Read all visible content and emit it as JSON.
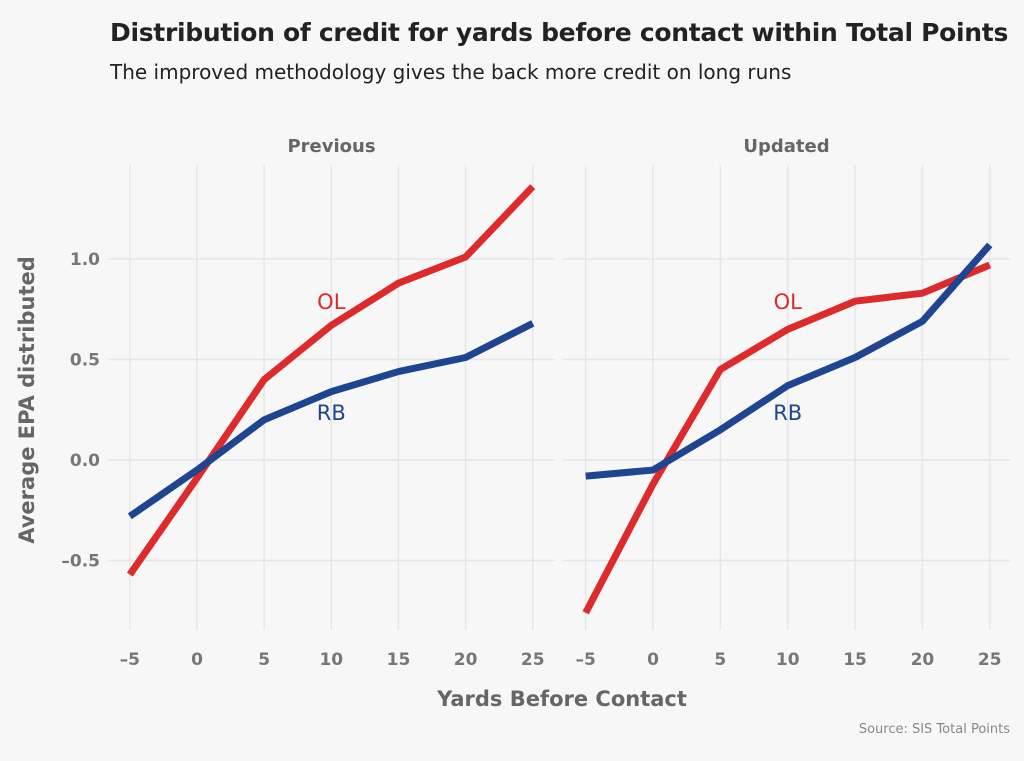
{
  "title": "Distribution of credit for yards before contact within Total Points",
  "subtitle": "The improved methodology gives the back more credit on long runs",
  "source": "Source: SIS Total Points",
  "colors": {
    "OL": "#dd2a2a",
    "RB": "#1f4591",
    "grid": "#e6e6e6",
    "background": "#f7f7f7"
  },
  "chart_data": {
    "type": "line",
    "xlabel": "Yards Before Contact",
    "ylabel": "Average EPA distributed",
    "x": [
      -5,
      0,
      5,
      10,
      15,
      20,
      25
    ],
    "xticks": [
      "-5",
      "0",
      "5",
      "10",
      "15",
      "20",
      "25"
    ],
    "yticks": [
      "-0.5",
      "0.0",
      "0.5",
      "1.0"
    ],
    "xlim": [
      -5,
      25
    ],
    "ylim": [
      -0.85,
      1.5
    ],
    "grid": true,
    "legend": "direct labels",
    "panels": [
      {
        "title": "Previous",
        "series": [
          {
            "name": "OL",
            "values": [
              -0.57,
              -0.09,
              0.4,
              0.67,
              0.88,
              1.01,
              1.36
            ]
          },
          {
            "name": "RB",
            "values": [
              -0.28,
              -0.05,
              0.2,
              0.34,
              0.44,
              0.51,
              0.68
            ]
          }
        ]
      },
      {
        "title": "Updated",
        "series": [
          {
            "name": "OL",
            "values": [
              -0.76,
              -0.12,
              0.45,
              0.65,
              0.79,
              0.83,
              0.97
            ]
          },
          {
            "name": "RB",
            "values": [
              -0.08,
              -0.05,
              0.15,
              0.37,
              0.51,
              0.69,
              1.07
            ]
          }
        ]
      }
    ]
  }
}
